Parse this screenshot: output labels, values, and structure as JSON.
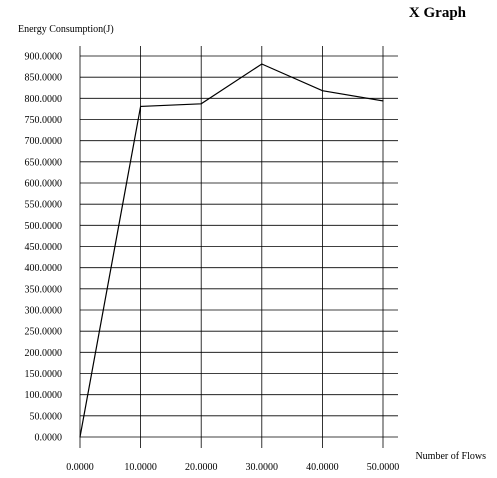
{
  "chart_data": {
    "type": "line",
    "title": "X Graph",
    "xlabel": "Number of Flows",
    "ylabel": "Energy Consumption(J)",
    "xlim": [
      0,
      50
    ],
    "ylim": [
      0,
      900
    ],
    "grid": true,
    "x_ticks": [
      "0.0000",
      "10.0000",
      "20.0000",
      "30.0000",
      "40.0000",
      "50.0000"
    ],
    "y_ticks": [
      "0.0000",
      "50.0000",
      "100.0000",
      "150.0000",
      "200.0000",
      "250.0000",
      "300.0000",
      "350.0000",
      "400.0000",
      "450.0000",
      "500.0000",
      "550.0000",
      "600.0000",
      "650.0000",
      "700.0000",
      "750.0000",
      "800.0000",
      "850.0000",
      "900.0000"
    ],
    "series": [
      {
        "x": [
          0,
          10,
          20,
          30,
          40,
          50
        ],
        "values": [
          0,
          781,
          787,
          881,
          818,
          794
        ],
        "color": "#000000"
      }
    ]
  }
}
